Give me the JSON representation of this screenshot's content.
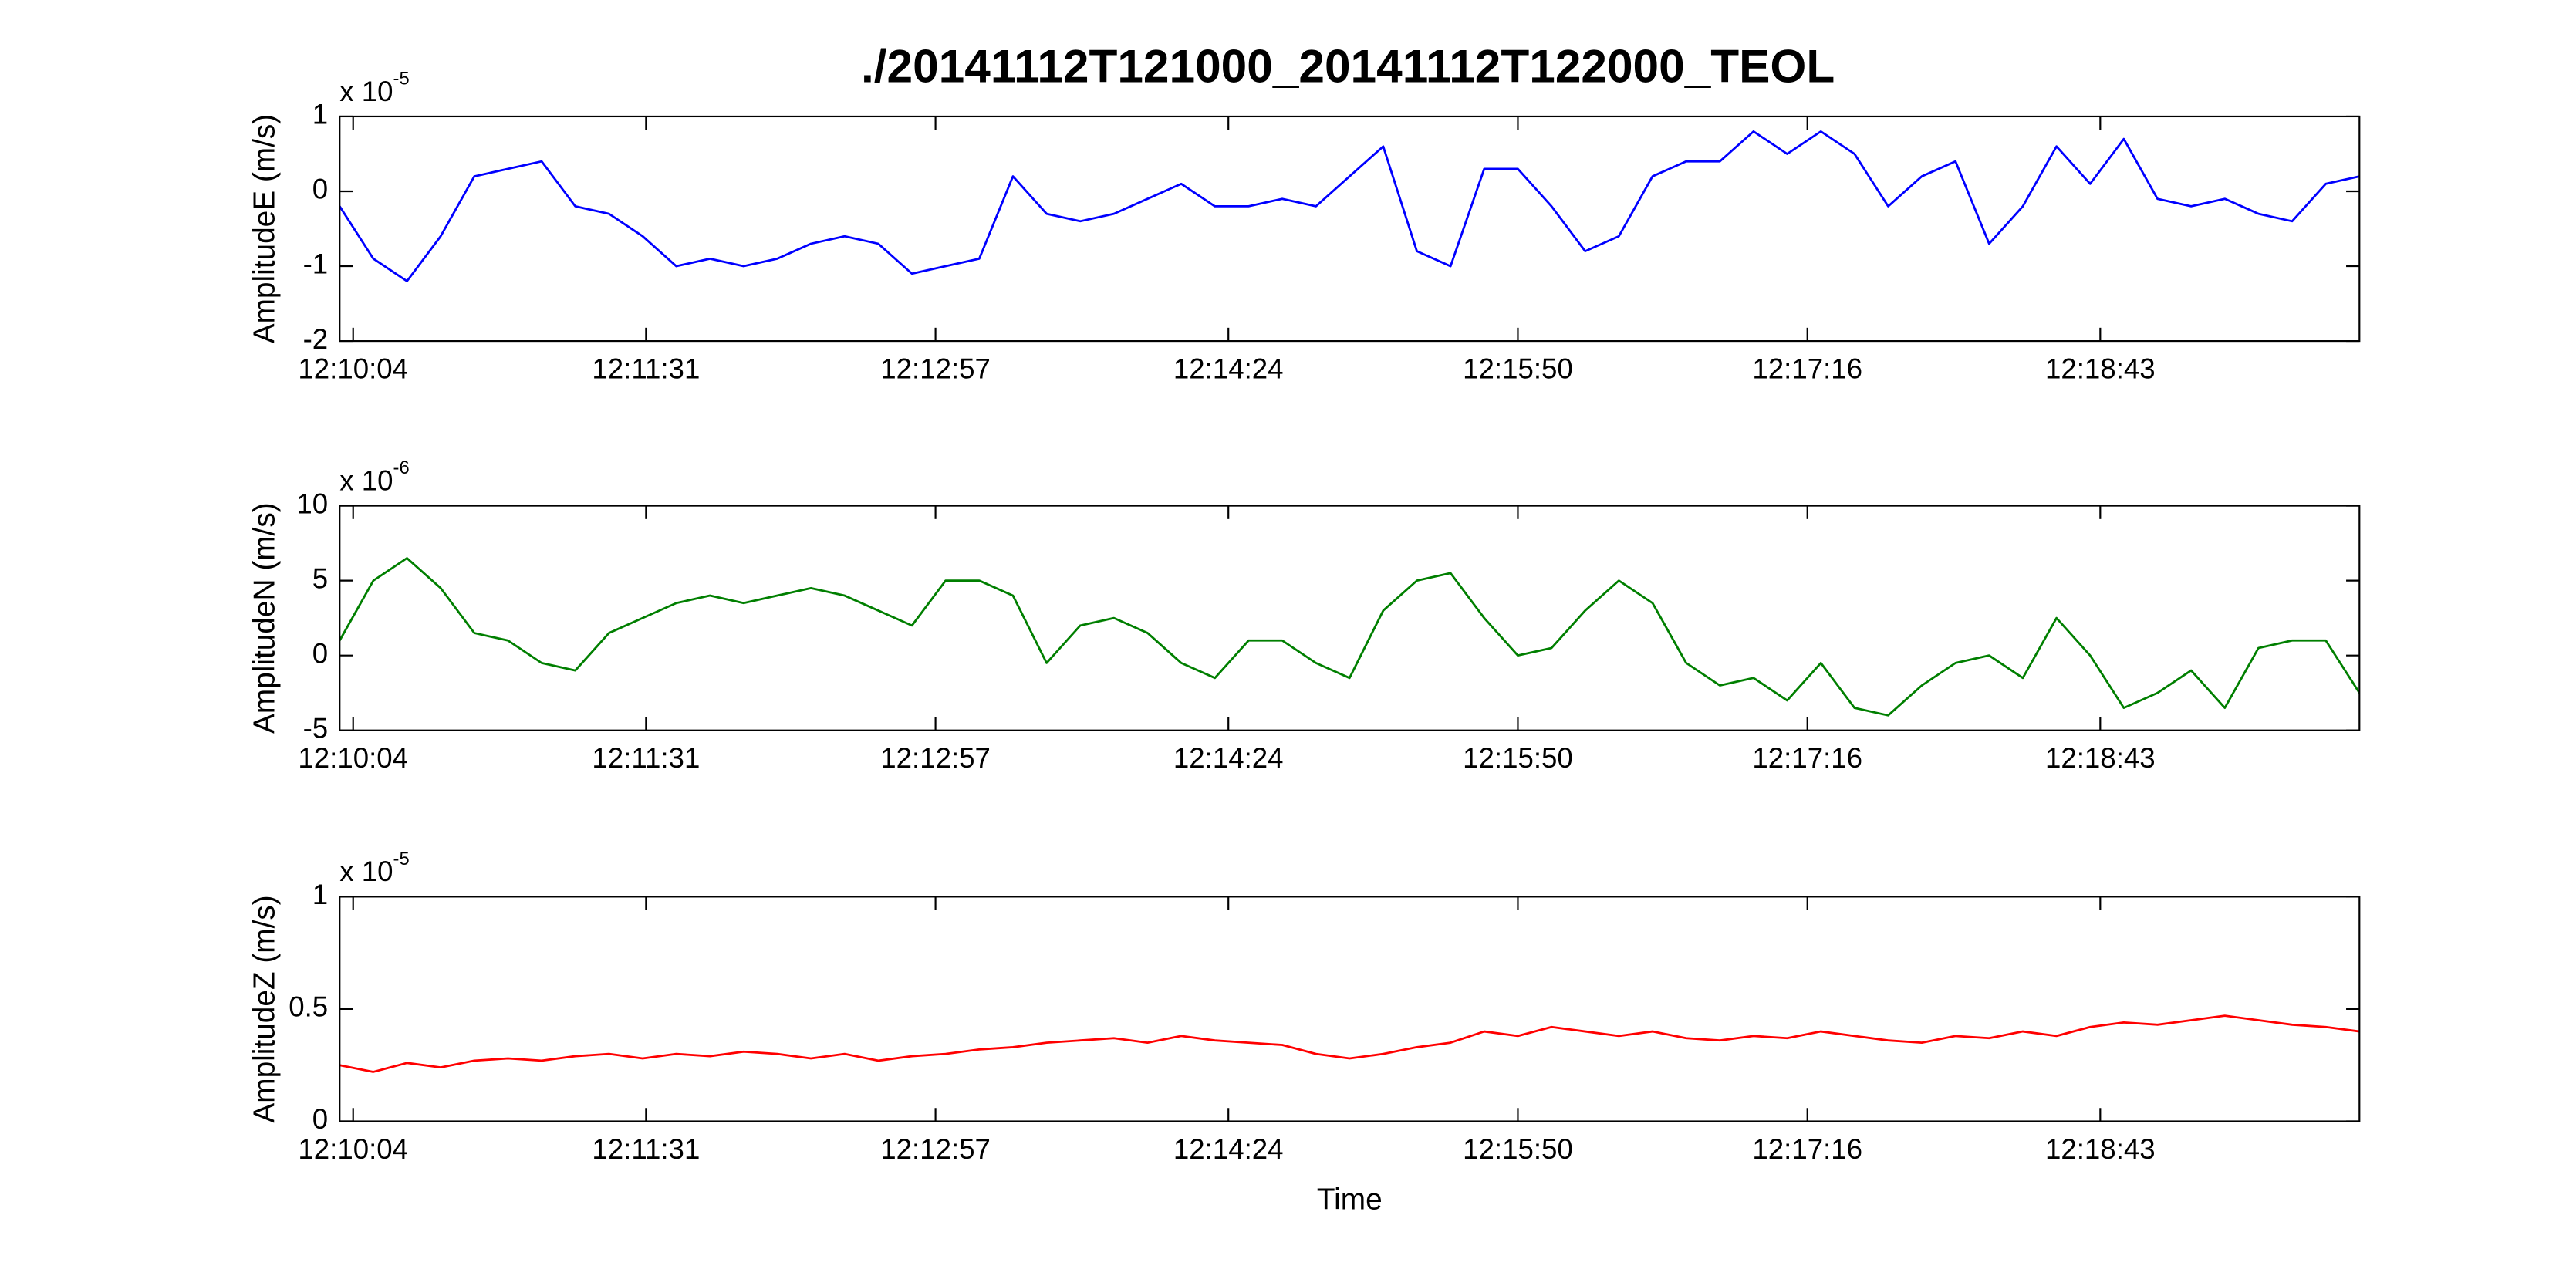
{
  "title": "./20141112T121000_20141112T122000_TEOL",
  "chart_data": [
    {
      "type": "line",
      "ylabel": "AmplitudeE (m/s)",
      "multiplier": {
        "base": "x 10",
        "exponent": "-5"
      },
      "color": "#0000ff",
      "xlim": [
        "12:10:00",
        "12:20:00"
      ],
      "xticks": [
        "12:10:04",
        "12:11:31",
        "12:12:57",
        "12:14:24",
        "12:15:50",
        "12:17:16",
        "12:18:43"
      ],
      "ylim": [
        -2,
        1
      ],
      "yticks": [
        -2,
        -1,
        0,
        1
      ],
      "x": [
        "12:10:00",
        "12:10:10",
        "12:10:20",
        "12:10:30",
        "12:10:40",
        "12:10:50",
        "12:11:00",
        "12:11:10",
        "12:11:20",
        "12:11:30",
        "12:11:40",
        "12:11:50",
        "12:12:00",
        "12:12:10",
        "12:12:20",
        "12:12:30",
        "12:12:40",
        "12:12:50",
        "12:13:00",
        "12:13:10",
        "12:13:20",
        "12:13:30",
        "12:13:40",
        "12:13:50",
        "12:14:00",
        "12:14:10",
        "12:14:20",
        "12:14:30",
        "12:14:40",
        "12:14:50",
        "12:15:00",
        "12:15:10",
        "12:15:20",
        "12:15:30",
        "12:15:40",
        "12:15:50",
        "12:16:00",
        "12:16:10",
        "12:16:20",
        "12:16:30",
        "12:16:40",
        "12:16:50",
        "12:17:00",
        "12:17:10",
        "12:17:20",
        "12:17:30",
        "12:17:40",
        "12:17:50",
        "12:18:00",
        "12:18:10",
        "12:18:20",
        "12:18:30",
        "12:18:40",
        "12:18:50",
        "12:19:00",
        "12:19:10",
        "12:19:20",
        "12:19:30",
        "12:19:40",
        "12:19:50",
        "12:20:00"
      ],
      "values": [
        -0.2,
        -0.9,
        -1.2,
        -0.6,
        0.2,
        0.3,
        0.4,
        -0.2,
        -0.3,
        -0.6,
        -1.0,
        -0.9,
        -1.0,
        -0.9,
        -0.7,
        -0.6,
        -0.7,
        -1.1,
        -1.0,
        -0.9,
        0.2,
        -0.3,
        -0.4,
        -0.3,
        -0.1,
        0.1,
        -0.2,
        -0.2,
        -0.1,
        -0.2,
        0.2,
        0.6,
        -0.8,
        -1.0,
        0.3,
        0.3,
        -0.2,
        -0.8,
        -0.6,
        0.2,
        0.4,
        0.4,
        0.8,
        0.5,
        0.8,
        0.5,
        -0.2,
        0.2,
        0.4,
        -0.7,
        -0.2,
        0.6,
        0.1,
        0.7,
        -0.1,
        -0.2,
        -0.1,
        -0.3,
        -0.4,
        0.1,
        0.2
      ]
    },
    {
      "type": "line",
      "ylabel": "AmplitudeN (m/s)",
      "multiplier": {
        "base": "x 10",
        "exponent": "-6"
      },
      "color": "#007f00",
      "xlim": [
        "12:10:00",
        "12:20:00"
      ],
      "xticks": [
        "12:10:04",
        "12:11:31",
        "12:12:57",
        "12:14:24",
        "12:15:50",
        "12:17:16",
        "12:18:43"
      ],
      "ylim": [
        -5,
        10
      ],
      "yticks": [
        -5,
        0,
        5,
        10
      ],
      "x": [
        "12:10:00",
        "12:10:10",
        "12:10:20",
        "12:10:30",
        "12:10:40",
        "12:10:50",
        "12:11:00",
        "12:11:10",
        "12:11:20",
        "12:11:30",
        "12:11:40",
        "12:11:50",
        "12:12:00",
        "12:12:10",
        "12:12:20",
        "12:12:30",
        "12:12:40",
        "12:12:50",
        "12:13:00",
        "12:13:10",
        "12:13:20",
        "12:13:30",
        "12:13:40",
        "12:13:50",
        "12:14:00",
        "12:14:10",
        "12:14:20",
        "12:14:30",
        "12:14:40",
        "12:14:50",
        "12:15:00",
        "12:15:10",
        "12:15:20",
        "12:15:30",
        "12:15:40",
        "12:15:50",
        "12:16:00",
        "12:16:10",
        "12:16:20",
        "12:16:30",
        "12:16:40",
        "12:16:50",
        "12:17:00",
        "12:17:10",
        "12:17:20",
        "12:17:30",
        "12:17:40",
        "12:17:50",
        "12:18:00",
        "12:18:10",
        "12:18:20",
        "12:18:30",
        "12:18:40",
        "12:18:50",
        "12:19:00",
        "12:19:10",
        "12:19:20",
        "12:19:30",
        "12:19:40",
        "12:19:50",
        "12:20:00"
      ],
      "values": [
        1,
        5,
        6.5,
        4.5,
        1.5,
        1,
        -0.5,
        -1,
        1.5,
        2.5,
        3.5,
        4,
        3.5,
        4,
        4.5,
        4,
        3,
        2,
        5,
        5,
        4,
        -0.5,
        2,
        2.5,
        1.5,
        -0.5,
        -1.5,
        1,
        1,
        -0.5,
        -1.5,
        3,
        5,
        5.5,
        2.5,
        0,
        0.5,
        3,
        5,
        3.5,
        -0.5,
        -2,
        -1.5,
        -3,
        -0.5,
        -3.5,
        -4,
        -2,
        -0.5,
        0,
        -1.5,
        2.5,
        0,
        -3.5,
        -2.5,
        -1,
        -3.5,
        0.5,
        1,
        1,
        -2.5
      ]
    },
    {
      "type": "line",
      "ylabel": "AmplitudeZ (m/s)",
      "multiplier": {
        "base": "x 10",
        "exponent": "-5"
      },
      "color": "#ff0000",
      "xlabel": "Time",
      "xlim": [
        "12:10:00",
        "12:20:00"
      ],
      "xticks": [
        "12:10:04",
        "12:11:31",
        "12:12:57",
        "12:14:24",
        "12:15:50",
        "12:17:16",
        "12:18:43"
      ],
      "ylim": [
        0,
        1
      ],
      "yticks": [
        0,
        0.5,
        1
      ],
      "x": [
        "12:10:00",
        "12:10:10",
        "12:10:20",
        "12:10:30",
        "12:10:40",
        "12:10:50",
        "12:11:00",
        "12:11:10",
        "12:11:20",
        "12:11:30",
        "12:11:40",
        "12:11:50",
        "12:12:00",
        "12:12:10",
        "12:12:20",
        "12:12:30",
        "12:12:40",
        "12:12:50",
        "12:13:00",
        "12:13:10",
        "12:13:20",
        "12:13:30",
        "12:13:40",
        "12:13:50",
        "12:14:00",
        "12:14:10",
        "12:14:20",
        "12:14:30",
        "12:14:40",
        "12:14:50",
        "12:15:00",
        "12:15:10",
        "12:15:20",
        "12:15:30",
        "12:15:40",
        "12:15:50",
        "12:16:00",
        "12:16:10",
        "12:16:20",
        "12:16:30",
        "12:16:40",
        "12:16:50",
        "12:17:00",
        "12:17:10",
        "12:17:20",
        "12:17:30",
        "12:17:40",
        "12:17:50",
        "12:18:00",
        "12:18:10",
        "12:18:20",
        "12:18:30",
        "12:18:40",
        "12:18:50",
        "12:19:00",
        "12:19:10",
        "12:19:20",
        "12:19:30",
        "12:19:40",
        "12:19:50",
        "12:20:00"
      ],
      "values": [
        0.25,
        0.22,
        0.26,
        0.24,
        0.27,
        0.28,
        0.27,
        0.29,
        0.3,
        0.28,
        0.3,
        0.29,
        0.31,
        0.3,
        0.28,
        0.3,
        0.27,
        0.29,
        0.3,
        0.32,
        0.33,
        0.35,
        0.36,
        0.37,
        0.35,
        0.38,
        0.36,
        0.35,
        0.34,
        0.3,
        0.28,
        0.3,
        0.33,
        0.35,
        0.4,
        0.38,
        0.42,
        0.4,
        0.38,
        0.4,
        0.37,
        0.36,
        0.38,
        0.37,
        0.4,
        0.38,
        0.36,
        0.35,
        0.38,
        0.37,
        0.4,
        0.38,
        0.42,
        0.44,
        0.43,
        0.45,
        0.47,
        0.45,
        0.43,
        0.42,
        0.4
      ]
    }
  ]
}
